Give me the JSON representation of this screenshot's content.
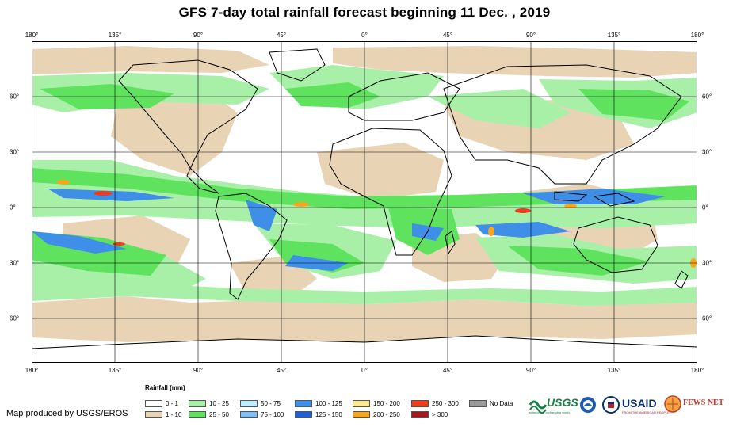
{
  "title": "GFS 7-day total rainfall forecast beginning 11 Dec. , 2019",
  "longitude_ticks": [
    "180°",
    "135°",
    "90°",
    "45°",
    "0°",
    "45°",
    "90°",
    "135°",
    "180°"
  ],
  "latitude_ticks": [
    "60°",
    "30°",
    "0°",
    "30°",
    "60°"
  ],
  "legend": {
    "title": "Rainfall (mm)",
    "items": [
      {
        "label": "0 - 1",
        "color": "#ffffff"
      },
      {
        "label": "1 - 10",
        "color": "#e8d3b5"
      },
      {
        "label": "10 - 25",
        "color": "#a8f0a8"
      },
      {
        "label": "25 - 50",
        "color": "#5fe35f"
      },
      {
        "label": "50 - 75",
        "color": "#bfeefc"
      },
      {
        "label": "75 - 100",
        "color": "#7fbff5"
      },
      {
        "label": "100 - 125",
        "color": "#3f8fe8"
      },
      {
        "label": "125 - 150",
        "color": "#1f5fd8"
      },
      {
        "label": "150 - 200",
        "color": "#fde98f"
      },
      {
        "label": "200 - 250",
        "color": "#f9a51a"
      },
      {
        "label": "250 - 300",
        "color": "#ee3b1c"
      },
      {
        "label": "> 300",
        "color": "#a8171b"
      },
      {
        "label": "No Data",
        "color": "#9a9a9a"
      }
    ]
  },
  "credit": "Map produced by USGS/EROS",
  "logos": {
    "usgs": "USGS",
    "usgs_tagline": "science for a changing world",
    "usaid": "USAID",
    "usaid_tagline": "FROM THE AMERICAN PEOPLE",
    "fewsnet": "FEWS NET"
  },
  "colors": {
    "ocean_dry": "#ffffff",
    "land_dry": "#e8d3b5",
    "light_rain": "#a8f0a8",
    "medium_rain": "#5fe35f",
    "heavy_rain": "#3f8fe8",
    "very_heavy": "#ee3b1c",
    "usgs_green": "#1a7f47",
    "usaid_blue": "#0a2f6b",
    "fews_red": "#c0392b"
  }
}
